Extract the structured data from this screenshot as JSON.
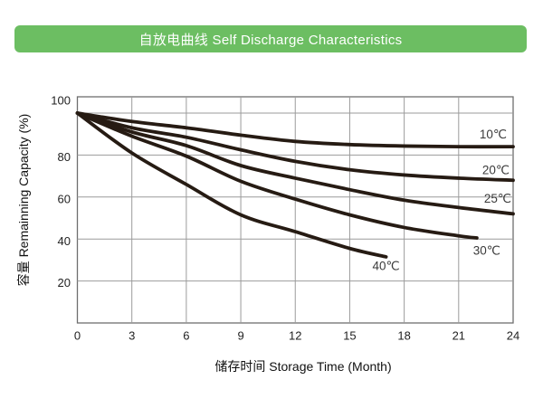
{
  "header": {
    "title": "自放电曲线 Self Discharge Characteristics",
    "background_color": "#6cbe62",
    "text_color": "#ffffff"
  },
  "chart_data": {
    "type": "line",
    "title": "自放电曲线 Self Discharge Characteristics",
    "xlabel": "储存时间 Storage Time (Month)",
    "ylabel": "容量 Remainning Capacity (%)",
    "xlim": [
      0,
      24
    ],
    "ylim": [
      0,
      107.8
    ],
    "x_ticks": [
      0,
      3,
      6,
      9,
      12,
      15,
      18,
      21,
      24
    ],
    "y_ticks": [
      20,
      40,
      60,
      80,
      100
    ],
    "grid": true,
    "legend_position": "labels-at-curve-ends",
    "curve_color": "#261b13",
    "grid_color": "#9b9b9b",
    "frame_color": "#6e6e6e",
    "series": [
      {
        "name": "10℃",
        "points": [
          [
            0,
            100
          ],
          [
            3,
            96
          ],
          [
            6,
            93
          ],
          [
            9,
            89.5
          ],
          [
            12,
            86.5
          ],
          [
            15,
            85
          ],
          [
            18,
            84.3
          ],
          [
            21,
            84
          ],
          [
            24,
            84
          ]
        ]
      },
      {
        "name": "20℃",
        "points": [
          [
            0,
            100
          ],
          [
            3,
            93
          ],
          [
            6,
            88.5
          ],
          [
            9,
            82.5
          ],
          [
            12,
            77
          ],
          [
            15,
            73
          ],
          [
            18,
            70.5
          ],
          [
            21,
            69
          ],
          [
            24,
            68
          ]
        ]
      },
      {
        "name": "25℃",
        "points": [
          [
            0,
            100
          ],
          [
            3,
            91
          ],
          [
            6,
            84.5
          ],
          [
            9,
            75
          ],
          [
            12,
            69
          ],
          [
            15,
            63.5
          ],
          [
            18,
            58.5
          ],
          [
            21,
            55
          ],
          [
            24,
            52
          ]
        ]
      },
      {
        "name": "30℃",
        "points": [
          [
            0,
            100
          ],
          [
            3,
            89
          ],
          [
            6,
            79.5
          ],
          [
            9,
            67.5
          ],
          [
            12,
            59
          ],
          [
            15,
            51.5
          ],
          [
            18,
            45.5
          ],
          [
            21,
            41.5
          ],
          [
            22,
            40.5
          ]
        ]
      },
      {
        "name": "40℃",
        "points": [
          [
            0,
            100
          ],
          [
            3,
            81
          ],
          [
            6,
            66
          ],
          [
            9,
            51.5
          ],
          [
            12,
            43.5
          ],
          [
            15,
            35.5
          ],
          [
            17,
            31.5
          ]
        ]
      }
    ]
  }
}
